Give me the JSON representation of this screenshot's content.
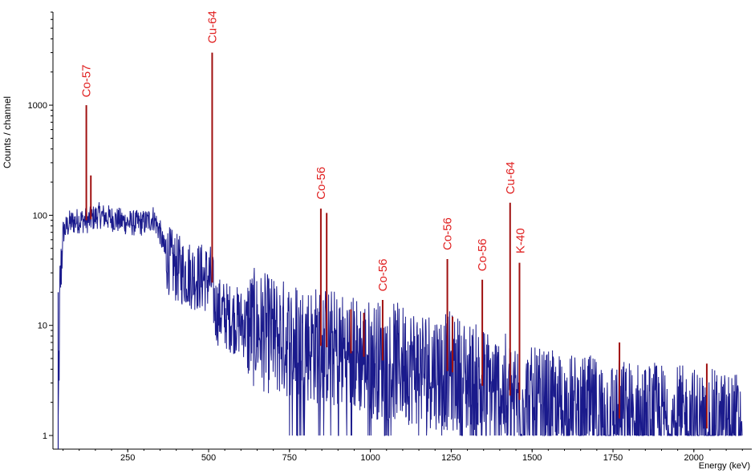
{
  "chart_data": {
    "type": "line",
    "title": "",
    "xlabel": "Energy (keV)",
    "ylabel": "Counts / channel",
    "xlim": [
      0,
      2150
    ],
    "ylim": [
      1,
      10000
    ],
    "yscale": "log",
    "grid": false,
    "x_ticks": [
      "250",
      "500",
      "750",
      "1000",
      "1250",
      "1500",
      "1750",
      "2000"
    ],
    "y_ticks": [
      "1",
      "10",
      "100",
      "1000"
    ],
    "colors": {
      "spectrum": "#1a1a8c",
      "peaks": "#a01010",
      "labels": "#e02020"
    },
    "continuum": {
      "x": [
        35,
        40,
        50,
        70,
        100,
        130,
        160,
        190,
        220,
        260,
        300,
        330,
        350,
        365,
        380,
        400,
        430,
        460,
        490,
        510,
        520,
        560,
        620,
        700,
        800,
        900,
        1000,
        1100,
        1200,
        1250,
        1300,
        1350,
        1400,
        1450,
        1500,
        1600,
        1700,
        1800,
        1900,
        2000,
        2100,
        2150
      ],
      "y": [
        1,
        20,
        70,
        85,
        90,
        90,
        100,
        95,
        90,
        85,
        85,
        95,
        70,
        45,
        38,
        33,
        30,
        28,
        27,
        26,
        14,
        12,
        10,
        8,
        7,
        6,
        5,
        4.5,
        4,
        3.8,
        3.2,
        2.8,
        2.5,
        2.2,
        1.8,
        1.6,
        1.5,
        1.4,
        1.3,
        1.2,
        1.1,
        1.1
      ]
    },
    "peaks": [
      {
        "label": "Co-57",
        "energy": 122,
        "counts": 1000
      },
      {
        "label": "",
        "energy": 136,
        "counts": 230
      },
      {
        "label": "Cu-64",
        "energy": 511,
        "counts": 3000
      },
      {
        "label": "Co-56",
        "energy": 847,
        "counts": 115
      },
      {
        "label": "",
        "energy": 865,
        "counts": 105
      },
      {
        "label": "",
        "energy": 940,
        "counts": 14
      },
      {
        "label": "",
        "energy": 980,
        "counts": 13
      },
      {
        "label": "Co-56",
        "energy": 1038,
        "counts": 17
      },
      {
        "label": "Co-56",
        "energy": 1238,
        "counts": 40
      },
      {
        "label": "",
        "energy": 1254,
        "counts": 12
      },
      {
        "label": "Co-56",
        "energy": 1346,
        "counts": 26
      },
      {
        "label": "Cu-64",
        "energy": 1432,
        "counts": 130
      },
      {
        "label": "K-40",
        "energy": 1461,
        "counts": 37
      },
      {
        "label": "",
        "energy": 1770,
        "counts": 7
      },
      {
        "label": "",
        "energy": 2040,
        "counts": 4.5
      }
    ],
    "peak_labels": [
      {
        "text": "Co-57",
        "energy": 122,
        "counts": 1100
      },
      {
        "text": "Cu-64",
        "energy": 511,
        "counts": 3400
      },
      {
        "text": "Co-56",
        "energy": 847,
        "counts": 130
      },
      {
        "text": "Co-56",
        "energy": 1038,
        "counts": 19
      },
      {
        "text": "Co-56",
        "energy": 1238,
        "counts": 45
      },
      {
        "text": "Co-56",
        "energy": 1346,
        "counts": 29
      },
      {
        "text": "Cu-64",
        "energy": 1432,
        "counts": 145
      },
      {
        "text": "K-40",
        "energy": 1463,
        "counts": 42
      }
    ]
  }
}
